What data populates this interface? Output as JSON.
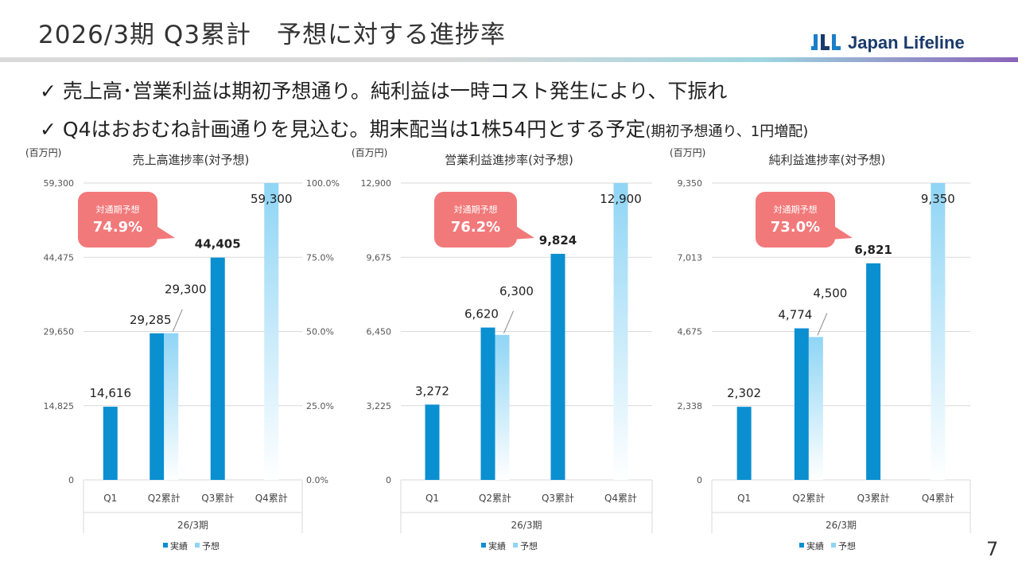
{
  "header": {
    "title": "2026/3期 Q3累計　予想に対する進捗率",
    "logo_mark": "JLL",
    "logo_text": "Japan Lifeline"
  },
  "bullets": {
    "check": "✓",
    "line1": "売上高･営業利益は期初予想通り。純利益は一時コスト発生により、下振れ",
    "line2_main": "Q4はおおむね計画通りを見込む。期末配当は1株54円とする予定",
    "line2_small": "(期初予想通り、1円増配)"
  },
  "page_number": "7",
  "colors": {
    "actual": "#0a8fd1",
    "forecast": "#8fd5f5",
    "callout": "#f2797a"
  },
  "chart_data": [
    {
      "type": "bar",
      "title": "売上高進捗率(対予想)",
      "unit_label": "(百万円)",
      "categories": [
        "Q1",
        "Q2累計",
        "Q3累計",
        "Q4累計"
      ],
      "group_label": "26/3期",
      "series": [
        {
          "name": "実績",
          "values": [
            14616,
            29285,
            44405,
            null
          ],
          "labels": [
            "14,616",
            "29,285",
            "44,405",
            ""
          ]
        },
        {
          "name": "予想",
          "values": [
            null,
            29300,
            null,
            59300
          ],
          "labels": [
            "",
            "29,300",
            "",
            "59,300"
          ]
        }
      ],
      "ylim": [
        0,
        59300
      ],
      "yticks": [
        "0",
        "14,825",
        "29,650",
        "44,475",
        "59,300"
      ],
      "y2ticks": [
        "0.0%",
        "25.0%",
        "50.0%",
        "75.0%",
        "100.0%"
      ],
      "callout_title": "対通期予想",
      "callout_value": "74.9%"
    },
    {
      "type": "bar",
      "title": "営業利益進捗率(対予想)",
      "unit_label": "(百万円)",
      "categories": [
        "Q1",
        "Q2累計",
        "Q3累計",
        "Q4累計"
      ],
      "group_label": "26/3期",
      "series": [
        {
          "name": "実績",
          "values": [
            3272,
            6620,
            9824,
            null
          ],
          "labels": [
            "3,272",
            "6,620",
            "9,824",
            ""
          ]
        },
        {
          "name": "予想",
          "values": [
            null,
            6300,
            null,
            12900
          ],
          "labels": [
            "",
            "6,300",
            "",
            "12,900"
          ]
        }
      ],
      "ylim": [
        0,
        12900
      ],
      "yticks": [
        "0",
        "3,225",
        "6,450",
        "9,675",
        "12,900"
      ],
      "y2ticks": [],
      "callout_title": "対通期予想",
      "callout_value": "76.2%"
    },
    {
      "type": "bar",
      "title": "純利益進捗率(対予想)",
      "unit_label": "(百万円)",
      "categories": [
        "Q1",
        "Q2累計",
        "Q3累計",
        "Q4累計"
      ],
      "group_label": "26/3期",
      "series": [
        {
          "name": "実績",
          "values": [
            2302,
            4774,
            6821,
            null
          ],
          "labels": [
            "2,302",
            "4,774",
            "6,821",
            ""
          ]
        },
        {
          "name": "予想",
          "values": [
            null,
            4500,
            null,
            9350
          ],
          "labels": [
            "",
            "4,500",
            "",
            "9,350"
          ]
        }
      ],
      "ylim": [
        0,
        9350
      ],
      "yticks": [
        "0",
        "2,338",
        "4,675",
        "7,013",
        "9,350"
      ],
      "y2ticks": [],
      "callout_title": "対通期予想",
      "callout_value": "73.0%"
    }
  ]
}
